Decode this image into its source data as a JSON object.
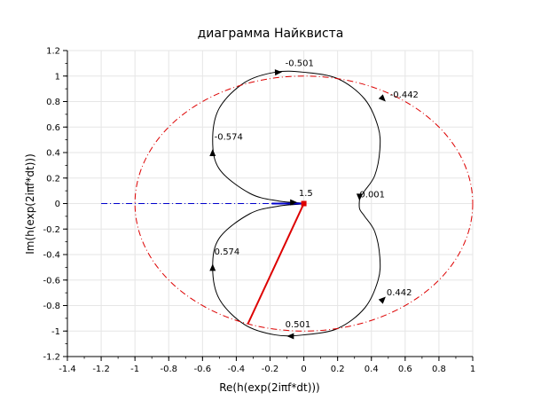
{
  "chart_data": {
    "type": "line",
    "title": "диаграмма Найквиста",
    "xlabel": "Re(h(exp(2iπf*dt)))",
    "ylabel": "Im(h(exp(2iπf*dt)))",
    "xlim": [
      -1.4,
      1.0
    ],
    "ylim": [
      -1.2,
      1.2
    ],
    "x_ticks": [
      "-1.4",
      "-1.2",
      "-1",
      "-0.8",
      "-0.6",
      "-0.4",
      "-0.2",
      "0",
      "0.2",
      "0.4",
      "0.6",
      "0.8",
      "1"
    ],
    "y_ticks": [
      "-1.2",
      "-1",
      "-0.8",
      "-0.6",
      "-0.4",
      "-0.2",
      "0",
      "0.2",
      "0.4",
      "0.6",
      "0.8",
      "1",
      "1.2"
    ],
    "grid": true,
    "series": [
      {
        "kind": "nyquist-curve",
        "color": "#000000",
        "points": [
          [
            0.33,
            0.04
          ],
          [
            0.36,
            0.1
          ],
          [
            0.42,
            0.22
          ],
          [
            0.45,
            0.42
          ],
          [
            0.44,
            0.6
          ],
          [
            0.36,
            0.82
          ],
          [
            0.2,
            0.98
          ],
          [
            0.0,
            1.03
          ],
          [
            -0.17,
            1.03
          ],
          [
            -0.35,
            0.95
          ],
          [
            -0.5,
            0.75
          ],
          [
            -0.54,
            0.5
          ],
          [
            -0.5,
            0.27
          ],
          [
            -0.32,
            0.08
          ],
          [
            -0.15,
            0.02
          ],
          [
            0.0,
            0.0
          ],
          [
            -0.15,
            -0.02
          ],
          [
            -0.32,
            -0.08
          ],
          [
            -0.5,
            -0.27
          ],
          [
            -0.54,
            -0.5
          ],
          [
            -0.5,
            -0.75
          ],
          [
            -0.35,
            -0.95
          ],
          [
            -0.17,
            -1.03
          ],
          [
            0.0,
            -1.03
          ],
          [
            0.2,
            -0.98
          ],
          [
            0.36,
            -0.82
          ],
          [
            0.44,
            -0.6
          ],
          [
            0.45,
            -0.42
          ],
          [
            0.42,
            -0.22
          ],
          [
            0.36,
            -0.1
          ],
          [
            0.33,
            -0.04
          ],
          [
            0.33,
            0.04
          ]
        ]
      },
      {
        "kind": "unit-circle",
        "color": "#dd0000",
        "style": "dashdot",
        "center": [
          0,
          0
        ],
        "radius": 1.0
      },
      {
        "kind": "segment",
        "color": "#dd0000",
        "from": [
          0,
          0
        ],
        "to": [
          -0.33,
          -0.94
        ]
      },
      {
        "kind": "segment",
        "color": "#0000cc",
        "style": "dashdot",
        "from": [
          -1.2,
          0
        ],
        "to": [
          0,
          0
        ]
      },
      {
        "kind": "segment",
        "color": "#0000cc",
        "from": [
          -0.19,
          0.0
        ],
        "to": [
          0,
          0
        ]
      }
    ],
    "direction_arrows": [
      {
        "at": [
          -0.15,
          1.03
        ],
        "dir": [
          1,
          0.05
        ]
      },
      {
        "at": [
          0.47,
          -0.75
        ],
        "dir": [
          0.6,
          0.6
        ]
      },
      {
        "at": [
          0.47,
          0.82
        ],
        "dir": [
          0.6,
          -0.6
        ]
      },
      {
        "at": [
          -0.54,
          0.4
        ],
        "dir": [
          0,
          1
        ]
      },
      {
        "at": [
          -0.54,
          -0.5
        ],
        "dir": [
          0,
          1
        ]
      },
      {
        "at": [
          -0.08,
          -1.04
        ],
        "dir": [
          -1,
          0
        ]
      },
      {
        "at": [
          0.33,
          0.05
        ],
        "dir": [
          0,
          -1
        ]
      },
      {
        "at": [
          -0.06,
          0.01
        ],
        "dir": [
          1,
          0
        ]
      }
    ],
    "annotations": [
      {
        "text": "-0.501",
        "x": -0.11,
        "y": 1.08
      },
      {
        "text": "-0.442",
        "x": 0.51,
        "y": 0.83
      },
      {
        "text": "-0.574",
        "x": -0.53,
        "y": 0.5
      },
      {
        "text": "0.001",
        "x": 0.33,
        "y": 0.05
      },
      {
        "text": "1.5",
        "x": -0.03,
        "y": 0.06
      },
      {
        "text": "0.574",
        "x": -0.53,
        "y": -0.4
      },
      {
        "text": "0.442",
        "x": 0.49,
        "y": -0.72
      },
      {
        "text": "0.501",
        "x": -0.11,
        "y": -0.97
      }
    ],
    "markers": [
      {
        "shape": "square",
        "color": "#dd0000",
        "x": 0.0,
        "y": 0.0
      }
    ]
  }
}
